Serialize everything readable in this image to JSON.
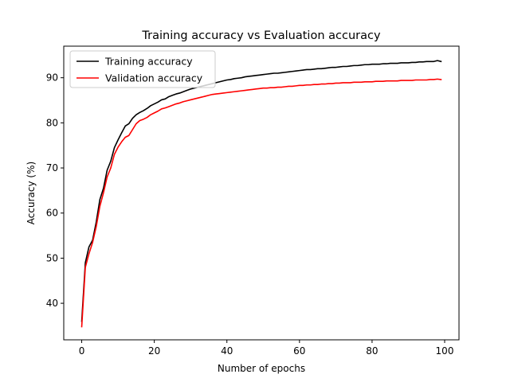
{
  "chart_data": {
    "type": "line",
    "title": "Training accuracy vs Evaluation accuracy",
    "xlabel": "Number of epochs",
    "ylabel": "Accuracy (%)",
    "xlim": [
      -4.95,
      103.95
    ],
    "ylim": [
      31.9,
      97.0
    ],
    "xticks": [
      0,
      20,
      40,
      60,
      80,
      100
    ],
    "yticks": [
      40,
      50,
      60,
      70,
      80,
      90
    ],
    "grid": false,
    "legend_position": "upper-left",
    "x": [
      0,
      1,
      2,
      3,
      4,
      5,
      6,
      7,
      8,
      9,
      10,
      11,
      12,
      13,
      14,
      15,
      16,
      17,
      18,
      19,
      20,
      21,
      22,
      23,
      24,
      25,
      26,
      27,
      28,
      29,
      30,
      31,
      32,
      33,
      34,
      35,
      36,
      37,
      38,
      39,
      40,
      41,
      42,
      43,
      44,
      45,
      46,
      47,
      48,
      49,
      50,
      51,
      52,
      53,
      54,
      55,
      56,
      57,
      58,
      59,
      60,
      61,
      62,
      63,
      64,
      65,
      66,
      67,
      68,
      69,
      70,
      71,
      72,
      73,
      74,
      75,
      76,
      77,
      78,
      79,
      80,
      81,
      82,
      83,
      84,
      85,
      86,
      87,
      88,
      89,
      90,
      91,
      92,
      93,
      94,
      95,
      96,
      97,
      98,
      99
    ],
    "series": [
      {
        "name": "Training accuracy",
        "color": "#000000",
        "values": [
          36.0,
          49.0,
          52.5,
          54.0,
          58.0,
          63.0,
          65.5,
          69.5,
          71.5,
          74.5,
          76.2,
          77.8,
          79.3,
          79.8,
          81.0,
          81.8,
          82.3,
          82.7,
          83.2,
          83.8,
          84.2,
          84.6,
          85.1,
          85.3,
          85.8,
          86.1,
          86.4,
          86.6,
          86.9,
          87.2,
          87.5,
          87.7,
          87.9,
          88.1,
          88.3,
          88.5,
          88.7,
          88.9,
          89.1,
          89.3,
          89.5,
          89.6,
          89.8,
          89.9,
          90.0,
          90.2,
          90.3,
          90.4,
          90.5,
          90.6,
          90.7,
          90.8,
          90.9,
          91.0,
          91.0,
          91.1,
          91.2,
          91.3,
          91.4,
          91.5,
          91.6,
          91.7,
          91.8,
          91.8,
          91.9,
          92.0,
          92.0,
          92.1,
          92.2,
          92.3,
          92.3,
          92.4,
          92.5,
          92.5,
          92.6,
          92.7,
          92.7,
          92.8,
          92.9,
          92.9,
          93.0,
          93.0,
          93.0,
          93.1,
          93.1,
          93.2,
          93.2,
          93.2,
          93.3,
          93.3,
          93.3,
          93.4,
          93.4,
          93.5,
          93.5,
          93.6,
          93.6,
          93.6,
          93.8,
          93.6
        ]
      },
      {
        "name": "Validation accuracy",
        "color": "#ff0000",
        "values": [
          34.8,
          48.0,
          51.0,
          53.5,
          57.0,
          61.5,
          64.5,
          68.0,
          70.0,
          73.0,
          74.6,
          75.8,
          76.8,
          77.2,
          78.5,
          79.8,
          80.5,
          80.8,
          81.2,
          81.8,
          82.2,
          82.6,
          83.1,
          83.3,
          83.6,
          83.9,
          84.2,
          84.4,
          84.7,
          84.9,
          85.1,
          85.3,
          85.5,
          85.7,
          85.9,
          86.1,
          86.3,
          86.4,
          86.5,
          86.6,
          86.7,
          86.8,
          86.9,
          87.0,
          87.1,
          87.2,
          87.3,
          87.4,
          87.5,
          87.6,
          87.7,
          87.7,
          87.8,
          87.8,
          87.9,
          87.9,
          88.0,
          88.1,
          88.1,
          88.2,
          88.3,
          88.3,
          88.4,
          88.4,
          88.5,
          88.5,
          88.6,
          88.6,
          88.7,
          88.7,
          88.8,
          88.8,
          88.9,
          88.9,
          88.9,
          89.0,
          89.0,
          89.0,
          89.1,
          89.1,
          89.1,
          89.2,
          89.2,
          89.2,
          89.3,
          89.3,
          89.3,
          89.3,
          89.4,
          89.4,
          89.4,
          89.4,
          89.5,
          89.5,
          89.5,
          89.5,
          89.6,
          89.6,
          89.7,
          89.6
        ]
      }
    ]
  }
}
